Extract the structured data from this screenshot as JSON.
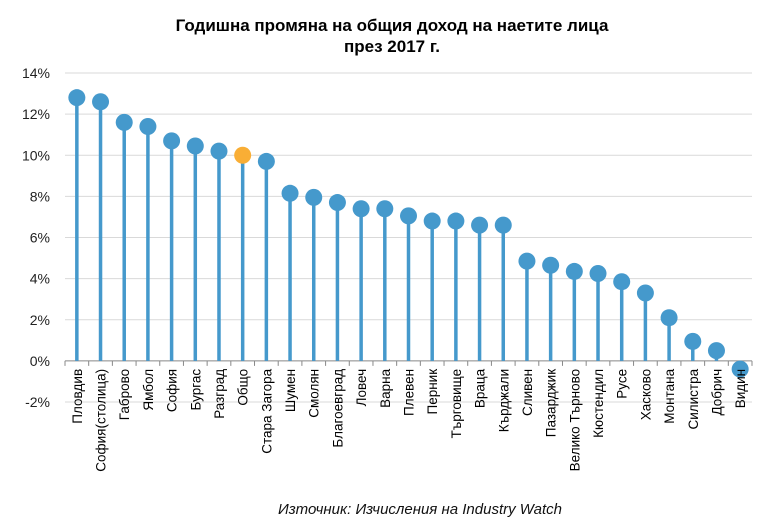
{
  "chart_data": {
    "type": "lollipop",
    "title": "Годишна промяна на общия доход на наетите лица",
    "subtitle": "през 2017 г.",
    "xlabel": "",
    "ylabel": "",
    "ylim": [
      -2,
      14
    ],
    "yticks": [
      -2,
      0,
      2,
      4,
      6,
      8,
      10,
      12,
      14
    ],
    "ytick_labels": [
      "-2%",
      "0%",
      "2%",
      "4%",
      "6%",
      "8%",
      "10%",
      "12%",
      "14%"
    ],
    "grid": true,
    "categories": [
      "Пловдив",
      "София(столица)",
      "Габрово",
      "Ямбол",
      "София",
      "Бургас",
      "Разград",
      "Общо",
      "Стара Загора",
      "Шумен",
      "Смолян",
      "Благоевград",
      "Ловеч",
      "Варна",
      "Плевен",
      "Перник",
      "Търговище",
      "Враца",
      "Кърджали",
      "Сливен",
      "Пазарджик",
      "Велико Търново",
      "Кюстендил",
      "Русе",
      "Хасково",
      "Монтана",
      "Силистра",
      "Добрич",
      "Видин"
    ],
    "values": [
      12.8,
      12.6,
      11.6,
      11.4,
      10.7,
      10.45,
      10.2,
      10.0,
      9.7,
      8.15,
      7.95,
      7.7,
      7.4,
      7.4,
      7.05,
      6.8,
      6.8,
      6.6,
      6.6,
      4.85,
      4.65,
      4.35,
      4.25,
      3.85,
      3.3,
      2.1,
      0.95,
      0.5,
      -0.4
    ],
    "highlight_category": "Общо",
    "colors": {
      "series": "#4599CC",
      "highlight": "#F9AE35",
      "grid": "#D9D9D9",
      "axis": "#888888"
    },
    "source": "Източник: Изчисления на Industry Watch"
  }
}
